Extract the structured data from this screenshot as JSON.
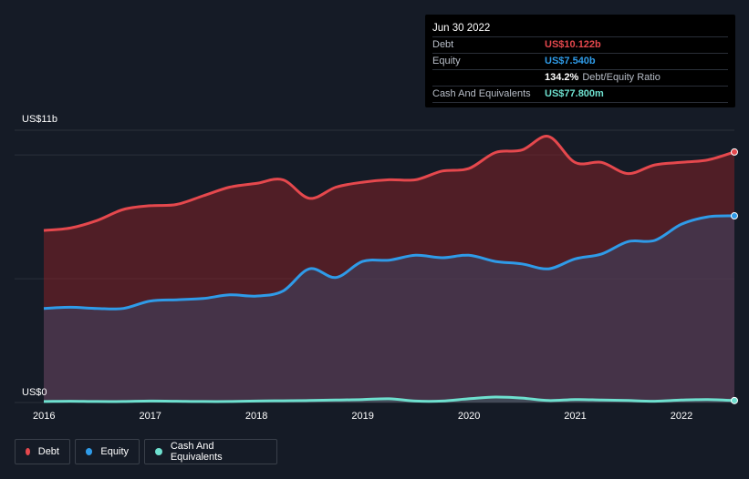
{
  "tooltip": {
    "date": "Jun 30 2022",
    "rows": [
      {
        "label": "Debt",
        "value": "US$10.122b",
        "color": "#e5484d"
      },
      {
        "label": "Equity",
        "value": "US$7.540b",
        "color": "#2f9be8"
      },
      {
        "label": "",
        "value": "134.2%",
        "suffix": "Debt/Equity Ratio",
        "color": "#ffffff"
      },
      {
        "label": "Cash And Equivalents",
        "value": "US$77.800m",
        "color": "#6ee0cf"
      }
    ]
  },
  "legend": {
    "debt": "Debt",
    "equity": "Equity",
    "cash": "Cash And Equivalents"
  },
  "chart_data": {
    "type": "area",
    "ylabel_top": "US$11b",
    "ylabel_bottom": "US$0",
    "ylim": [
      0,
      11
    ],
    "units": "US$ billions",
    "x_ticks": [
      "2016",
      "2017",
      "2018",
      "2019",
      "2020",
      "2021",
      "2022"
    ],
    "x": [
      2016.0,
      2016.25,
      2016.5,
      2016.75,
      2017.0,
      2017.25,
      2017.5,
      2017.75,
      2018.0,
      2018.25,
      2018.5,
      2018.75,
      2019.0,
      2019.25,
      2019.5,
      2019.75,
      2020.0,
      2020.25,
      2020.5,
      2020.75,
      2021.0,
      2021.25,
      2021.5,
      2021.75,
      2022.0,
      2022.25,
      2022.5
    ],
    "series": [
      {
        "name": "Debt",
        "color": "#e5484d",
        "values": [
          6.95,
          7.05,
          7.35,
          7.8,
          7.95,
          8.0,
          8.35,
          8.7,
          8.85,
          9.0,
          8.25,
          8.7,
          8.9,
          9.0,
          9.0,
          9.35,
          9.45,
          10.1,
          10.2,
          10.75,
          9.7,
          9.7,
          9.25,
          9.6,
          9.7,
          9.8,
          10.12
        ]
      },
      {
        "name": "Equity",
        "color": "#2f9be8",
        "values": [
          3.8,
          3.85,
          3.8,
          3.8,
          4.1,
          4.15,
          4.2,
          4.35,
          4.3,
          4.5,
          5.4,
          5.05,
          5.7,
          5.75,
          5.95,
          5.85,
          5.95,
          5.7,
          5.6,
          5.4,
          5.8,
          6.0,
          6.5,
          6.55,
          7.2,
          7.5,
          7.54
        ]
      },
      {
        "name": "Cash And Equivalents",
        "color": "#6ee0cf",
        "values": [
          0.04,
          0.05,
          0.04,
          0.04,
          0.06,
          0.05,
          0.04,
          0.04,
          0.06,
          0.07,
          0.08,
          0.1,
          0.12,
          0.15,
          0.06,
          0.06,
          0.15,
          0.22,
          0.18,
          0.08,
          0.12,
          0.1,
          0.08,
          0.05,
          0.1,
          0.12,
          0.08
        ]
      }
    ]
  }
}
